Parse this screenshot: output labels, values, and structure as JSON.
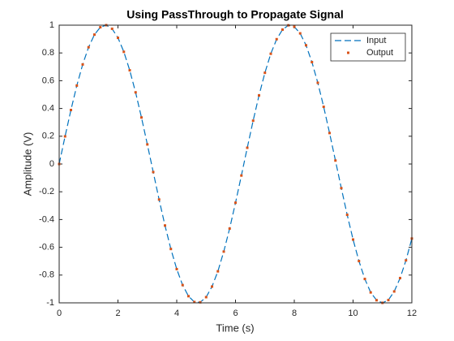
{
  "chart_data": {
    "type": "line",
    "title": "Using PassThrough to Propagate Signal",
    "xlabel": "Time (s)",
    "ylabel": "Amplitude (V)",
    "x": [
      0,
      0.2,
      0.4,
      0.6,
      0.8,
      1,
      1.2,
      1.4,
      1.6,
      1.8,
      2,
      2.2,
      2.4,
      2.6,
      2.8,
      3,
      3.2,
      3.4,
      3.6,
      3.8,
      4,
      4.2,
      4.4,
      4.6,
      4.8,
      5,
      5.2,
      5.4,
      5.6,
      5.8,
      6,
      6.2,
      6.4,
      6.6,
      6.8,
      7,
      7.2,
      7.4,
      7.6,
      7.8,
      8,
      8.2,
      8.4,
      8.6,
      8.8,
      9,
      9.2,
      9.4,
      9.6,
      9.8,
      10,
      10.2,
      10.4,
      10.6,
      10.8,
      11,
      11.2,
      11.4,
      11.6,
      11.8,
      12
    ],
    "series": [
      {
        "name": "Input",
        "color": "#0072BD",
        "style": "dashed",
        "values": [
          0,
          0.199,
          0.389,
          0.565,
          0.717,
          0.841,
          0.932,
          0.985,
          1.0,
          0.974,
          0.909,
          0.808,
          0.675,
          0.516,
          0.335,
          0.141,
          -0.058,
          -0.256,
          -0.443,
          -0.612,
          -0.757,
          -0.872,
          -0.952,
          -0.994,
          -0.996,
          -0.959,
          -0.883,
          -0.773,
          -0.631,
          -0.465,
          -0.279,
          -0.083,
          0.117,
          0.312,
          0.494,
          0.657,
          0.794,
          0.899,
          0.968,
          0.999,
          0.989,
          0.941,
          0.855,
          0.734,
          0.585,
          0.412,
          0.223,
          0.025,
          -0.174,
          -0.366,
          -0.544,
          -0.699,
          -0.828,
          -0.925,
          -0.981,
          -1.0,
          -0.98,
          -0.918,
          -0.822,
          -0.694,
          -0.537
        ]
      },
      {
        "name": "Output",
        "color": "#D95319",
        "style": "dots",
        "values": [
          0,
          0.199,
          0.389,
          0.565,
          0.717,
          0.841,
          0.932,
          0.985,
          1.0,
          0.974,
          0.909,
          0.808,
          0.675,
          0.516,
          0.335,
          0.141,
          -0.058,
          -0.256,
          -0.443,
          -0.612,
          -0.757,
          -0.872,
          -0.952,
          -0.994,
          -0.996,
          -0.959,
          -0.883,
          -0.773,
          -0.631,
          -0.465,
          -0.279,
          -0.083,
          0.117,
          0.312,
          0.494,
          0.657,
          0.794,
          0.899,
          0.968,
          0.999,
          0.989,
          0.941,
          0.855,
          0.734,
          0.585,
          0.412,
          0.223,
          0.025,
          -0.174,
          -0.366,
          -0.544,
          -0.699,
          -0.828,
          -0.925,
          -0.981,
          -1.0,
          -0.98,
          -0.918,
          -0.822,
          -0.694,
          -0.537
        ]
      }
    ],
    "xlim": [
      0,
      12
    ],
    "xticks": [
      0,
      2,
      4,
      6,
      8,
      10,
      12
    ],
    "ylim": [
      -1,
      1
    ],
    "yticks": [
      -1,
      -0.8,
      -0.6,
      -0.4,
      -0.2,
      0,
      0.2,
      0.4,
      0.6,
      0.8,
      1
    ],
    "legend": "northeast"
  }
}
